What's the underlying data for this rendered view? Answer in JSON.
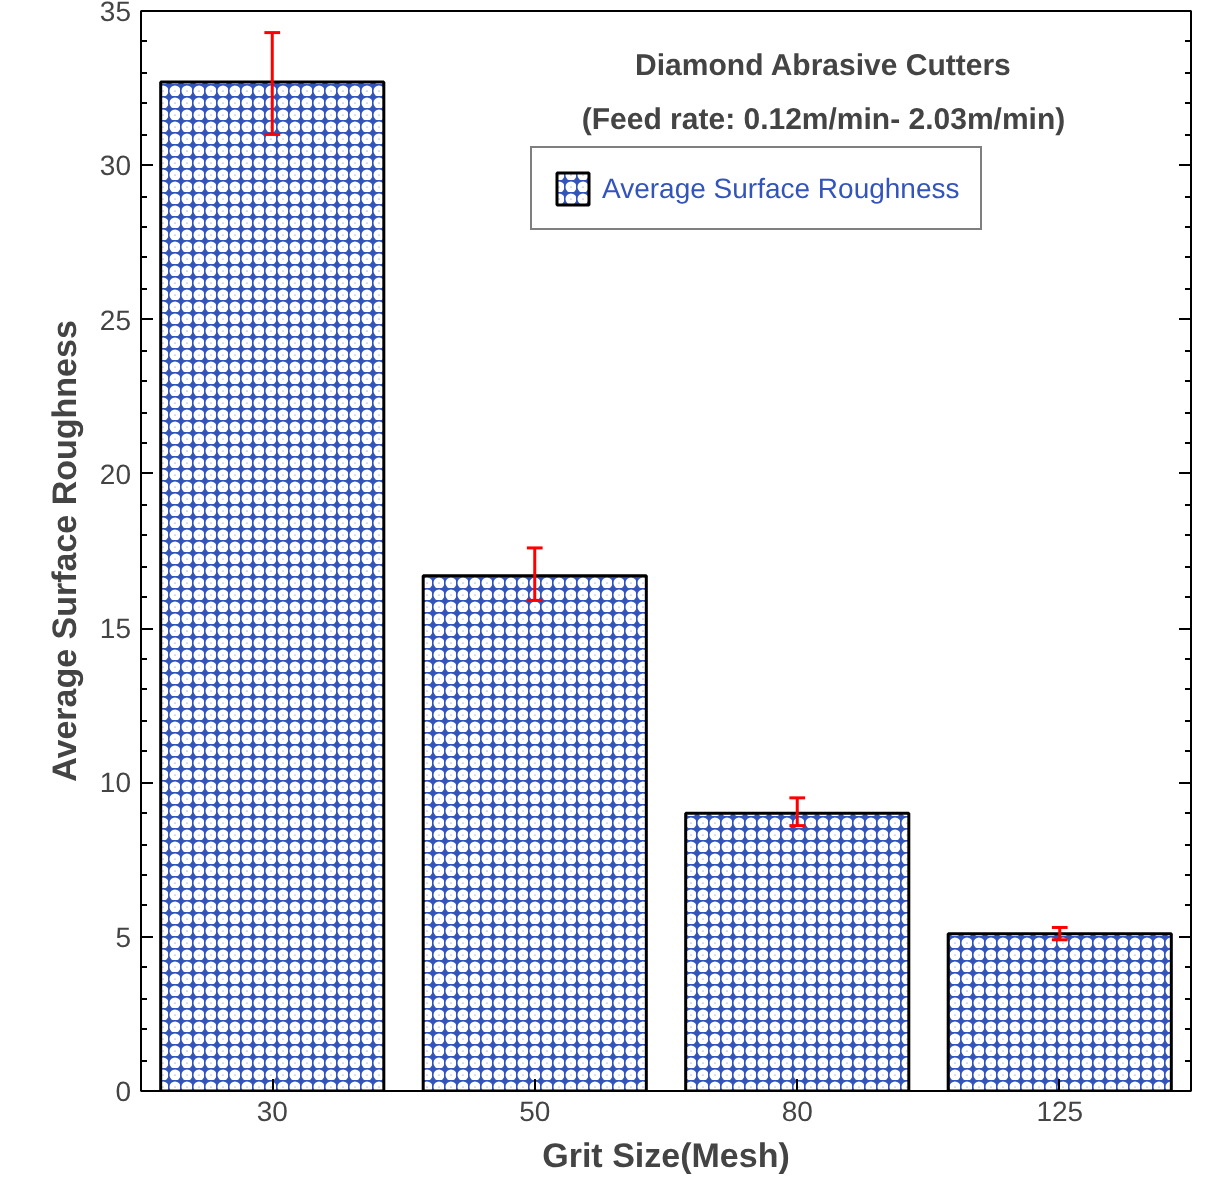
{
  "chart_data": {
    "type": "bar",
    "title": "Diamond Abrasive Cutters",
    "subtitle": "(Feed rate: 0.12m/min- 2.03m/min)",
    "xlabel": "Grit Size(Mesh)",
    "ylabel": "Average Surface Roughness",
    "categories": [
      "30",
      "50",
      "80",
      "125"
    ],
    "series": [
      {
        "name": "Average Surface Roughness",
        "color": "#3355bb",
        "values": [
          32.7,
          16.7,
          9.0,
          5.1
        ],
        "errors": [
          [
            31.0,
            34.3
          ],
          [
            15.9,
            17.6
          ],
          [
            8.6,
            9.5
          ],
          [
            4.9,
            5.3
          ]
        ]
      }
    ],
    "ylim": [
      0,
      35
    ],
    "yticks": [
      0,
      5,
      10,
      15,
      20,
      25,
      30,
      35
    ],
    "grid": false,
    "legend": "top right"
  }
}
